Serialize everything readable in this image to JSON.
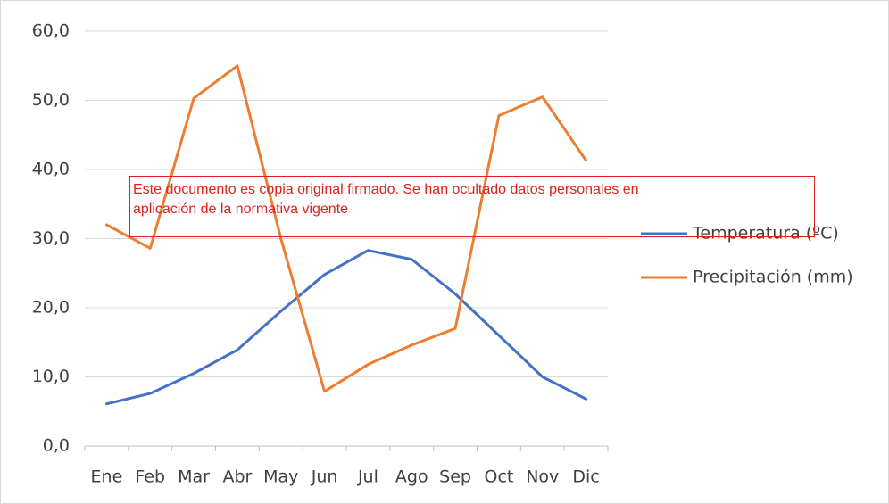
{
  "chart_data": {
    "type": "line",
    "categories": [
      "Ene",
      "Feb",
      "Mar",
      "Abr",
      "May",
      "Jun",
      "Jul",
      "Ago",
      "Sep",
      "Oct",
      "Nov",
      "Dic"
    ],
    "series": [
      {
        "name": "Temperatura (ºC)",
        "color": "#4472c4",
        "values": [
          6.1,
          7.6,
          10.5,
          13.9,
          19.5,
          24.8,
          28.3,
          27.0,
          22.0,
          16.0,
          10.0,
          6.8
        ]
      },
      {
        "name": "Precipitación (mm)",
        "color": "#ed7d31",
        "values": [
          32.0,
          28.6,
          50.3,
          55.0,
          30.0,
          7.9,
          11.8,
          14.6,
          17.0,
          47.8,
          50.5,
          41.3
        ]
      }
    ],
    "ylim": [
      0,
      60
    ],
    "yticks": [
      {
        "value": 0,
        "label": "0,0"
      },
      {
        "value": 10,
        "label": "10,0"
      },
      {
        "value": 20,
        "label": "20,0"
      },
      {
        "value": 30,
        "label": "30,0"
      },
      {
        "value": 40,
        "label": "40,0"
      },
      {
        "value": 50,
        "label": "50,0"
      },
      {
        "value": 60,
        "label": "60,0"
      }
    ],
    "grid": true,
    "legend": "right",
    "annotation": [
      "Este documento es copia original firmado. Se han ocultado datos personales en",
      "aplicación de la normativa vigente"
    ]
  }
}
